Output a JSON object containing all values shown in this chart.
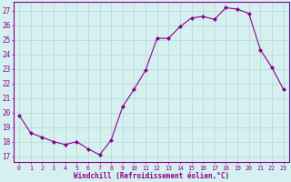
{
  "x": [
    0,
    1,
    2,
    3,
    4,
    5,
    6,
    7,
    8,
    9,
    10,
    11,
    12,
    13,
    14,
    15,
    16,
    17,
    18,
    19,
    20,
    21,
    22,
    23
  ],
  "y": [
    19.8,
    18.6,
    18.3,
    18.0,
    17.8,
    18.0,
    17.5,
    17.1,
    18.1,
    20.4,
    21.6,
    22.9,
    25.1,
    25.1,
    25.9,
    26.5,
    26.6,
    26.4,
    27.2,
    27.1,
    26.8,
    24.3,
    23.1,
    21.6
  ],
  "line_color": "#8B008B",
  "marker": "D",
  "marker_size": 2.0,
  "linewidth": 0.8,
  "xlabel": "Windchill (Refroidissement éolien,°C)",
  "ylabel_ticks": [
    17,
    18,
    19,
    20,
    21,
    22,
    23,
    24,
    25,
    26,
    27
  ],
  "ylim": [
    16.6,
    27.6
  ],
  "xlim": [
    -0.5,
    23.5
  ],
  "bg_color": "#d6f0f0",
  "grid_color": "#b0d8d8",
  "tick_color": "#8B008B",
  "label_color": "#8B008B",
  "spine_color": "#8B008B",
  "xlabel_fontsize": 5.5,
  "xtick_fontsize": 4.8,
  "ytick_fontsize": 5.5
}
